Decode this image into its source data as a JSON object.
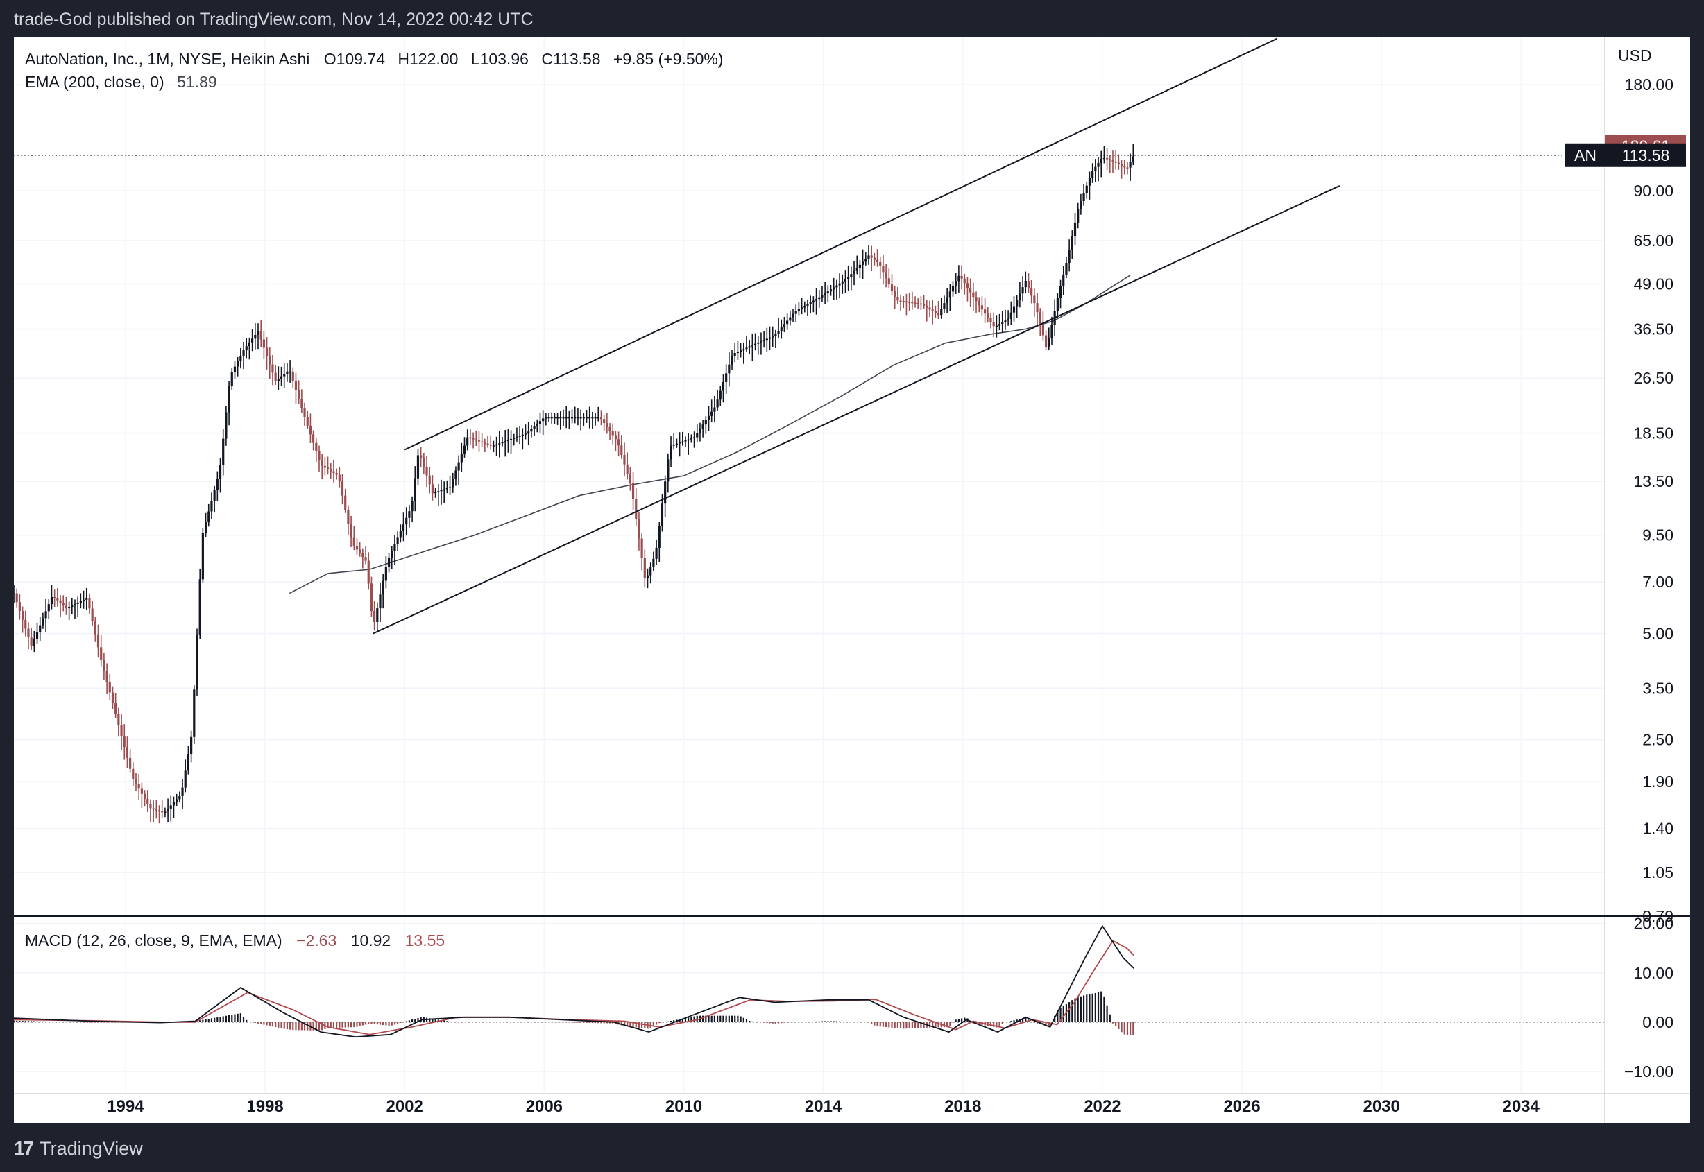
{
  "header": {
    "publisher": "trade-God published on TradingView.com, Nov 14, 2022 00:42 UTC"
  },
  "footer": {
    "brand": "TradingView",
    "logo_icon": "tradingview-logo-icon"
  },
  "colors": {
    "up": "#131722",
    "down": "#9b4d4f",
    "ema": "#434651",
    "macd_line": "#131722",
    "signal_line": "#b24a4e",
    "price_label_bg": "#131722",
    "high_label_bg": "#9b4d4f"
  },
  "legend": {
    "symbol_text": "AutoNation, Inc., 1M, NYSE, Heikin Ashi",
    "o_label": "O",
    "o_value": "109.74",
    "h_label": "H",
    "h_value": "122.00",
    "l_label": "L",
    "l_value": "103.96",
    "c_label": "C",
    "c_value": "113.58",
    "change": "+9.85 (+9.50%)",
    "ema_text": "EMA (200, close, 0)",
    "ema_value": "51.89"
  },
  "macd_legend": {
    "text": "MACD (12, 26, close, 9, EMA, EMA)",
    "hist": "−2.63",
    "macd": "10.92",
    "signal": "13.55"
  },
  "price_axis": {
    "currency": "USD",
    "ticks": [
      {
        "v": 180,
        "label": "180.00"
      },
      {
        "v": 90,
        "label": "90.00"
      },
      {
        "v": 65,
        "label": "65.00"
      },
      {
        "v": 49,
        "label": "49.00"
      },
      {
        "v": 36.5,
        "label": "36.50"
      },
      {
        "v": 26.5,
        "label": "26.50"
      },
      {
        "v": 18.5,
        "label": "18.50"
      },
      {
        "v": 13.5,
        "label": "13.50"
      },
      {
        "v": 9.5,
        "label": "9.50"
      },
      {
        "v": 7,
        "label": "7.00"
      },
      {
        "v": 5,
        "label": "5.00"
      },
      {
        "v": 3.5,
        "label": "3.50"
      },
      {
        "v": 2.5,
        "label": "2.50"
      },
      {
        "v": 1.9,
        "label": "1.90"
      },
      {
        "v": 1.4,
        "label": "1.40"
      },
      {
        "v": 1.05,
        "label": "1.05"
      },
      {
        "v": 0.79,
        "label": "0.79"
      }
    ],
    "high_label": {
      "v": 120.61,
      "label": "120.61"
    },
    "last_label": {
      "v": 113.58,
      "label": "113.58",
      "symbol": "AN"
    }
  },
  "macd_axis": {
    "ticks": [
      {
        "v": 20,
        "label": "20.00"
      },
      {
        "v": 10,
        "label": "10.00"
      },
      {
        "v": 0,
        "label": "0.00"
      },
      {
        "v": -10,
        "label": "−10.00"
      }
    ]
  },
  "time_axis": {
    "ticks": [
      {
        "t": 1994,
        "label": "1994"
      },
      {
        "t": 1998,
        "label": "1998"
      },
      {
        "t": 2002,
        "label": "2002"
      },
      {
        "t": 2006,
        "label": "2006"
      },
      {
        "t": 2010,
        "label": "2010"
      },
      {
        "t": 2014,
        "label": "2014"
      },
      {
        "t": 2018,
        "label": "2018"
      },
      {
        "t": 2022,
        "label": "2022"
      },
      {
        "t": 2026,
        "label": "2026"
      },
      {
        "t": 2030,
        "label": "2030"
      },
      {
        "t": 2034,
        "label": "2034"
      }
    ]
  },
  "chart_data": {
    "type": "candlestick",
    "x_range": [
      1990.8,
      2036.4
    ],
    "y_range": [
      0.79,
      245
    ],
    "y_scale": "log",
    "price_keypoints": [
      [
        1990.8,
        6.5
      ],
      [
        1991.3,
        4.6
      ],
      [
        1991.9,
        6.4
      ],
      [
        1992.3,
        5.9
      ],
      [
        1992.9,
        6.3
      ],
      [
        1993.3,
        4.2
      ],
      [
        1993.7,
        3.0
      ],
      [
        1994.2,
        1.95
      ],
      [
        1994.7,
        1.6
      ],
      [
        1995.1,
        1.55
      ],
      [
        1995.6,
        1.75
      ],
      [
        1995.9,
        2.6
      ],
      [
        1996.2,
        9.5
      ],
      [
        1996.7,
        14.5
      ],
      [
        1997.0,
        27
      ],
      [
        1997.4,
        32
      ],
      [
        1997.8,
        36
      ],
      [
        1998.3,
        26
      ],
      [
        1998.7,
        28
      ],
      [
        1999.1,
        21
      ],
      [
        1999.6,
        15
      ],
      [
        2000.1,
        14
      ],
      [
        2000.5,
        9
      ],
      [
        2000.9,
        8
      ],
      [
        2001.1,
        5.2
      ],
      [
        2001.5,
        8
      ],
      [
        2002.2,
        11.5
      ],
      [
        2002.4,
        16.5
      ],
      [
        2002.8,
        12.5
      ],
      [
        2003.3,
        13
      ],
      [
        2003.8,
        18
      ],
      [
        2004.5,
        17
      ],
      [
        2005.5,
        18.5
      ],
      [
        2006.0,
        20.5
      ],
      [
        2007.0,
        20.5
      ],
      [
        2007.6,
        20.5
      ],
      [
        2008.1,
        17.5
      ],
      [
        2008.5,
        13
      ],
      [
        2008.9,
        7
      ],
      [
        2009.2,
        8.5
      ],
      [
        2009.6,
        17
      ],
      [
        2010.3,
        18
      ],
      [
        2010.9,
        22
      ],
      [
        2011.4,
        31
      ],
      [
        2012.0,
        33
      ],
      [
        2012.6,
        35
      ],
      [
        2013.2,
        41
      ],
      [
        2013.9,
        45
      ],
      [
        2014.7,
        51
      ],
      [
        2015.3,
        59
      ],
      [
        2015.6,
        56
      ],
      [
        2016.1,
        44
      ],
      [
        2016.8,
        43
      ],
      [
        2017.3,
        40
      ],
      [
        2017.6,
        46
      ],
      [
        2017.9,
        52
      ],
      [
        2018.3,
        45
      ],
      [
        2018.9,
        37
      ],
      [
        2019.3,
        39
      ],
      [
        2019.8,
        50
      ],
      [
        2020.1,
        42
      ],
      [
        2020.4,
        32
      ],
      [
        2020.7,
        44
      ],
      [
        2021.0,
        58
      ],
      [
        2021.3,
        80
      ],
      [
        2021.7,
        102
      ],
      [
        2022.0,
        112
      ],
      [
        2022.4,
        108
      ],
      [
        2022.7,
        104
      ],
      [
        2022.9,
        113.58
      ]
    ],
    "ema200": [
      [
        1998.7,
        6.5
      ],
      [
        1999.8,
        7.4
      ],
      [
        2001.0,
        7.6
      ],
      [
        2002.5,
        8.5
      ],
      [
        2004.0,
        9.5
      ],
      [
        2005.5,
        10.8
      ],
      [
        2007.0,
        12.3
      ],
      [
        2008.5,
        13.2
      ],
      [
        2010.0,
        14.0
      ],
      [
        2011.5,
        16.3
      ],
      [
        2013.0,
        19.5
      ],
      [
        2014.5,
        23.5
      ],
      [
        2016.0,
        28.8
      ],
      [
        2017.5,
        33.3
      ],
      [
        2018.8,
        35.3
      ],
      [
        2019.8,
        36.5
      ],
      [
        2020.6,
        38.5
      ],
      [
        2021.5,
        43
      ],
      [
        2022.8,
        51.89
      ]
    ],
    "trendlines": [
      {
        "name": "upper-channel",
        "p1": [
          2002.0,
          16.6
        ],
        "p2": [
          2027.0,
          243
        ]
      },
      {
        "name": "lower-channel",
        "p1": [
          2001.1,
          5.0
        ],
        "p2": [
          2028.8,
          93
        ]
      }
    ],
    "macd": {
      "y_range": [
        -14.5,
        21.5
      ],
      "macd_keypoints": [
        [
          1990.8,
          0.8
        ],
        [
          1993,
          0.2
        ],
        [
          1995,
          -0.1
        ],
        [
          1996,
          0.2
        ],
        [
          1997.3,
          7
        ],
        [
          1998.5,
          2
        ],
        [
          1999.6,
          -2
        ],
        [
          2000.6,
          -3
        ],
        [
          2001.6,
          -2.5
        ],
        [
          2002.5,
          0.5
        ],
        [
          2003.7,
          1
        ],
        [
          2005,
          1
        ],
        [
          2006.5,
          0.5
        ],
        [
          2008,
          0
        ],
        [
          2009,
          -2
        ],
        [
          2010.1,
          1
        ],
        [
          2011.6,
          5
        ],
        [
          2012.6,
          4
        ],
        [
          2014.1,
          4.5
        ],
        [
          2015.3,
          4.5
        ],
        [
          2016.3,
          1
        ],
        [
          2017.6,
          -2
        ],
        [
          2018.1,
          0.5
        ],
        [
          2019.0,
          -2
        ],
        [
          2019.8,
          1
        ],
        [
          2020.5,
          -1
        ],
        [
          2021.0,
          6
        ],
        [
          2021.5,
          13
        ],
        [
          2022.0,
          19.5
        ],
        [
          2022.6,
          13
        ],
        [
          2022.9,
          10.92
        ]
      ],
      "signal_keypoints": [
        [
          1990.8,
          0.5
        ],
        [
          1993,
          0.3
        ],
        [
          1995,
          0
        ],
        [
          1996,
          0
        ],
        [
          1997.5,
          6
        ],
        [
          1998.8,
          2.5
        ],
        [
          1999.8,
          -1
        ],
        [
          2001,
          -2.5
        ],
        [
          2002.2,
          -1
        ],
        [
          2003.5,
          1
        ],
        [
          2005,
          1
        ],
        [
          2006.7,
          0.5
        ],
        [
          2008.3,
          0.2
        ],
        [
          2009.3,
          -1
        ],
        [
          2010.4,
          0.5
        ],
        [
          2011.9,
          4.5
        ],
        [
          2013,
          4.2
        ],
        [
          2014.3,
          4.3
        ],
        [
          2015.5,
          4.6
        ],
        [
          2016.6,
          1.5
        ],
        [
          2017.8,
          -1.5
        ],
        [
          2018.3,
          0.2
        ],
        [
          2019.2,
          -1.2
        ],
        [
          2020,
          0.5
        ],
        [
          2020.7,
          -0.5
        ],
        [
          2021.2,
          4
        ],
        [
          2021.8,
          11
        ],
        [
          2022.3,
          16.5
        ],
        [
          2022.7,
          15
        ],
        [
          2022.9,
          13.55
        ]
      ]
    }
  }
}
